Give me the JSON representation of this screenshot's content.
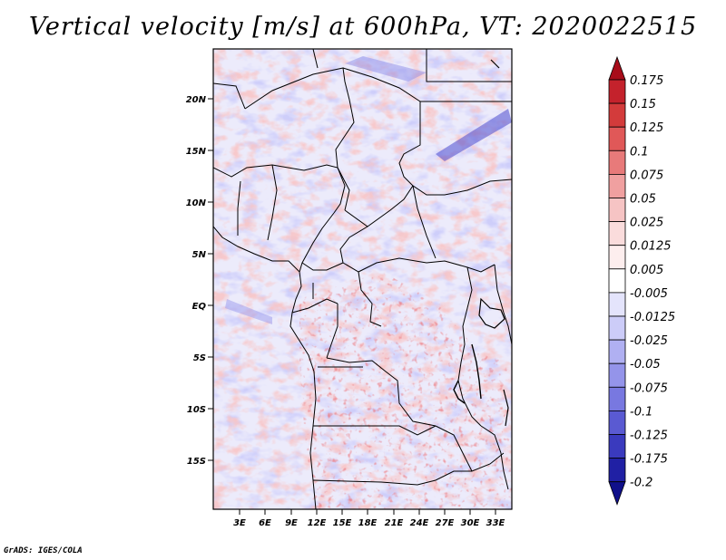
{
  "title": "Vertical velocity [m/s] at 600hPa, VT: 2020022515",
  "credit": "GrADS: IGES/COLA",
  "map": {
    "lat_labels": [
      "20N",
      "15N",
      "10N",
      "5N",
      "EQ",
      "5S",
      "10S",
      "15S"
    ],
    "lon_labels": [
      "3E",
      "6E",
      "9E",
      "12E",
      "15E",
      "18E",
      "21E",
      "24E",
      "27E",
      "30E",
      "33E"
    ]
  },
  "colorbar": {
    "labels": [
      "0.175",
      "0.15",
      "0.125",
      "0.1",
      "0.075",
      "0.05",
      "0.025",
      "0.0125",
      "0.005",
      "-0.005",
      "-0.0125",
      "-0.025",
      "-0.05",
      "-0.075",
      "-0.1",
      "-0.125",
      "-0.175",
      "-0.2"
    ],
    "colors": [
      "#a80c1a",
      "#c4222c",
      "#d33b3b",
      "#e05858",
      "#e87a7a",
      "#f0a0a0",
      "#f6c4c4",
      "#fadcdc",
      "#fdeeee",
      "#ffffff",
      "#e4e4fc",
      "#ccccf8",
      "#b0b0f2",
      "#9494ea",
      "#7878e0",
      "#5a5ad2",
      "#3a3abe",
      "#2020a4",
      "#10108a"
    ]
  },
  "field_colors": {
    "positive_light": "#f4b8b8",
    "positive_mid": "#e88080",
    "positive_strong": "#c8242c",
    "negative_light": "#c6c6f6",
    "negative_mid": "#9a9aee",
    "negative_strong": "#4a4ad0"
  }
}
